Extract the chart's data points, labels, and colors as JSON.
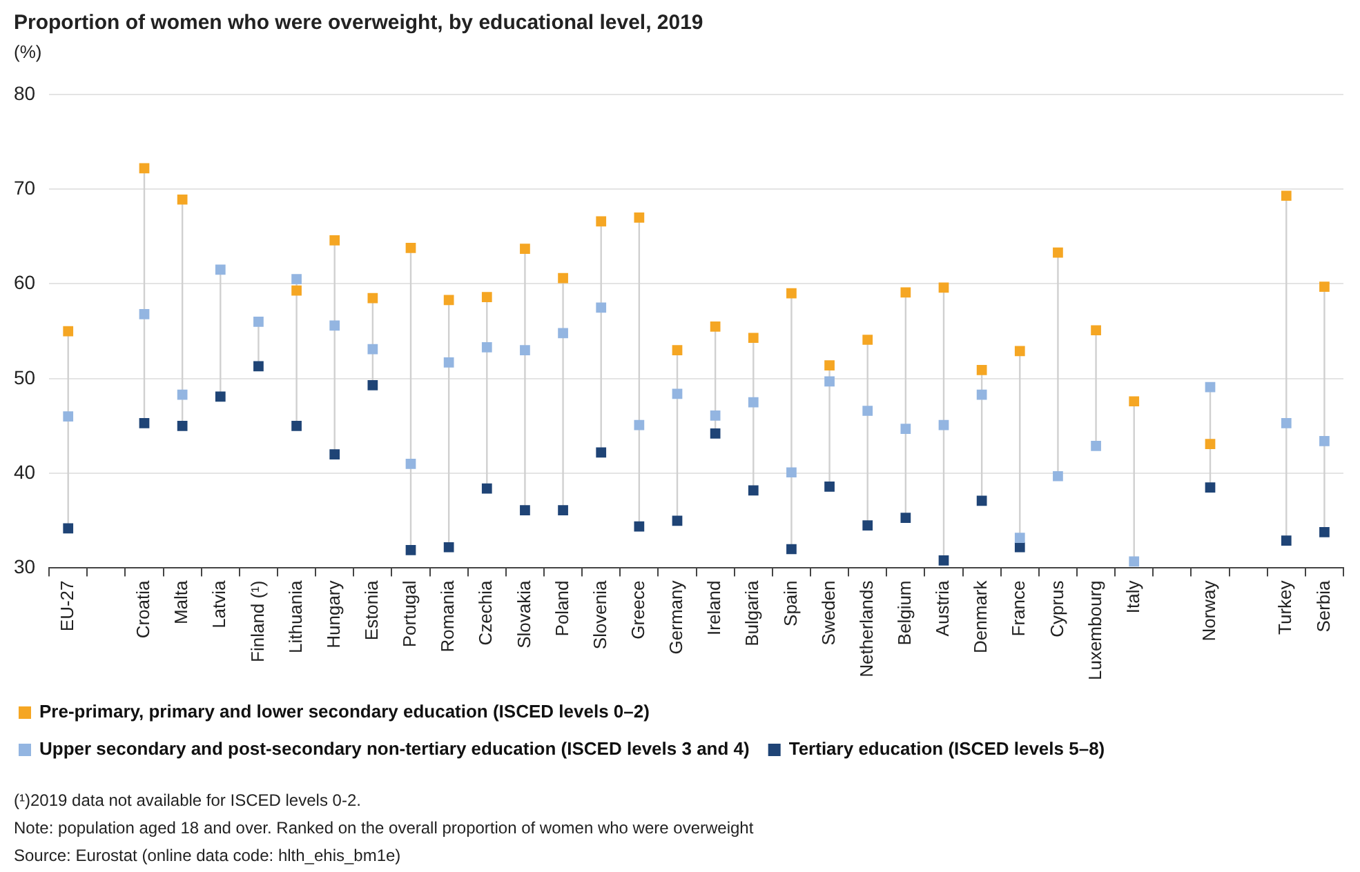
{
  "chart_data": {
    "type": "scatter",
    "title": "Proportion of women who were overweight, by educational level, 2019",
    "ylabel": "(%)",
    "categories": [
      "EU-27",
      null,
      "Croatia",
      "Malta",
      "Latvia",
      "Finland (¹)",
      "Lithuania",
      "Hungary",
      "Estonia",
      "Portugal",
      "Romania",
      "Czechia",
      "Slovakia",
      "Poland",
      "Slovenia",
      "Greece",
      "Germany",
      "Ireland",
      "Bulgaria",
      "Spain",
      "Sweden",
      "Netherlands",
      "Belgium",
      "Austria",
      "Denmark",
      "France",
      "Cyprus",
      "Luxembourg",
      "Italy",
      null,
      "Norway",
      null,
      "Turkey",
      "Serbia"
    ],
    "series": [
      {
        "name": "Pre-primary, primary and lower secondary education (ISCED levels 0–2)",
        "color": "#f5a623",
        "values": [
          55,
          null,
          72.2,
          68.9,
          null,
          null,
          59.3,
          64.6,
          58.5,
          63.8,
          58.3,
          58.6,
          63.7,
          60.6,
          66.6,
          67,
          53,
          55.5,
          54.3,
          59,
          51.4,
          54.1,
          59.1,
          59.6,
          50.9,
          52.9,
          63.3,
          55.1,
          47.6,
          null,
          43.1,
          null,
          69.3,
          59.7
        ]
      },
      {
        "name": "Upper secondary and post-secondary non-tertiary education (ISCED levels 3 and 4)",
        "color": "#93b5e1",
        "values": [
          46,
          null,
          56.8,
          48.3,
          61.5,
          56,
          60.5,
          55.6,
          53.1,
          41,
          51.7,
          53.3,
          53,
          54.8,
          57.5,
          45.1,
          48.4,
          46.1,
          47.5,
          40.1,
          49.7,
          46.6,
          44.7,
          45.1,
          48.3,
          33.2,
          39.7,
          42.9,
          30.7,
          null,
          49.1,
          null,
          45.3,
          43.4
        ]
      },
      {
        "name": "Tertiary education (ISCED levels 5–8)",
        "color": "#1f4476",
        "values": [
          34.2,
          null,
          45.3,
          45,
          48.1,
          51.3,
          45,
          42,
          49.3,
          31.9,
          32.2,
          38.4,
          36.1,
          36.1,
          42.2,
          34.4,
          35,
          44.2,
          38.2,
          32,
          38.6,
          34.5,
          35.3,
          30.8,
          37.1,
          32.2,
          null,
          null,
          null,
          null,
          38.5,
          null,
          32.9,
          33.8
        ]
      }
    ],
    "ylim": [
      30,
      80
    ],
    "yticks": [
      30,
      40,
      50,
      60,
      70,
      80
    ],
    "grid": "y",
    "legend": "bottom",
    "marker": "square",
    "annotations": [
      "(¹)2019 data not available for ISCED levels 0-2.",
      "Note: population aged 18 and over. Ranked on the overall proportion of women who were overweight",
      "Source: Eurostat (online data code: hlth_ehis_bm1e)"
    ]
  }
}
